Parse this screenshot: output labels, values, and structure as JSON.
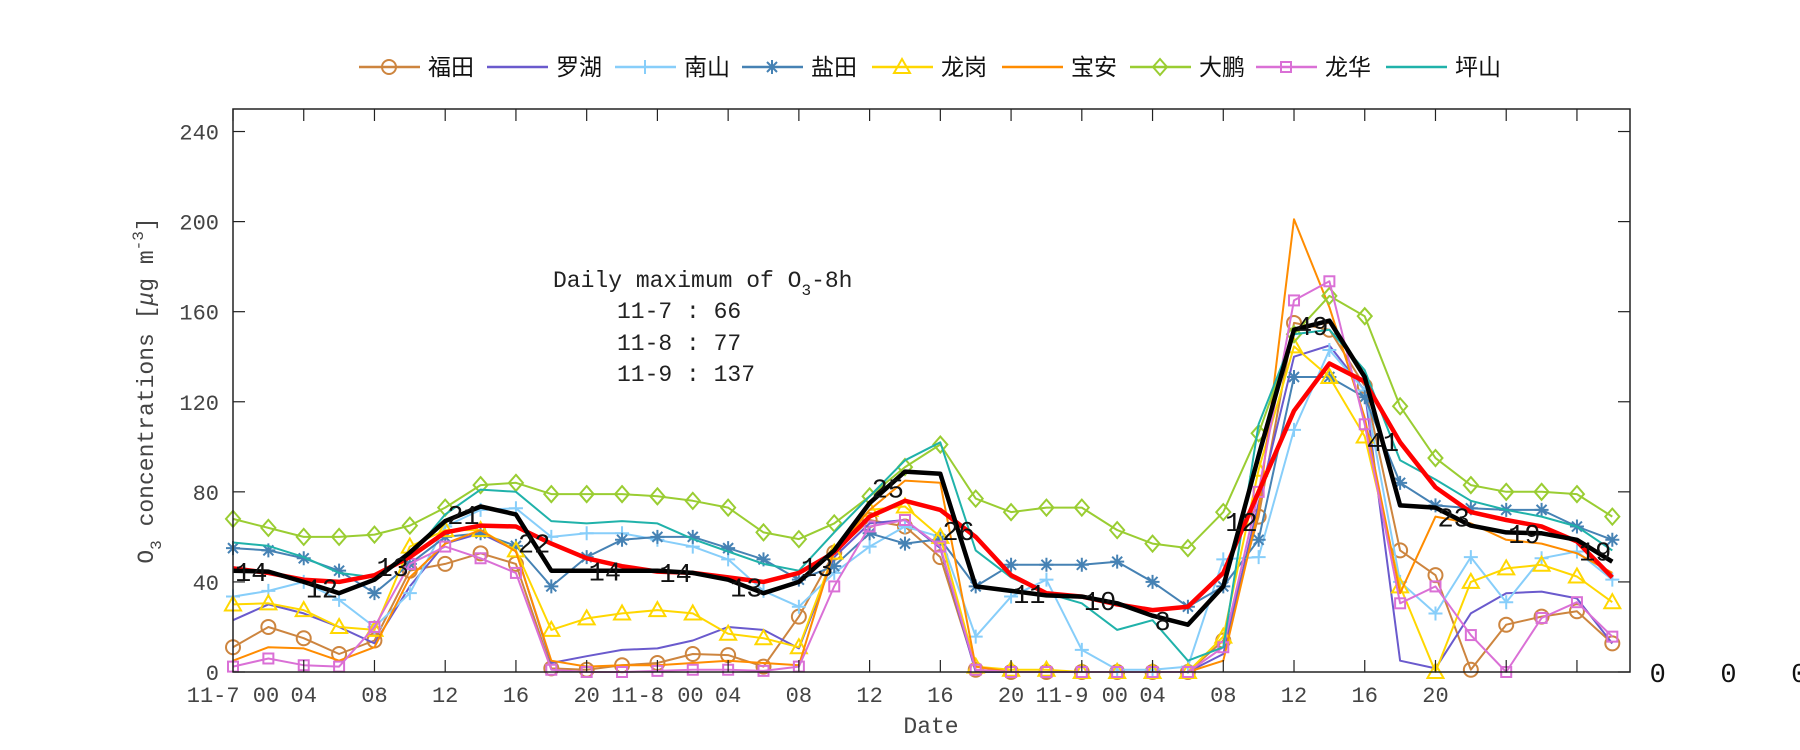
{
  "chart_data": {
    "type": "line",
    "xlabel": "Date",
    "ylabel_parts": [
      {
        "t": "O",
        "s": "normal"
      },
      {
        "t": "3",
        "s": "sub"
      },
      {
        "t": " concentrations [",
        "s": "normal"
      },
      {
        "t": "μ",
        "s": "italic"
      },
      {
        "t": "g m",
        "s": "normal"
      },
      {
        "t": "-3",
        "s": "sup"
      },
      {
        "t": "]",
        "s": "normal"
      }
    ],
    "x_unit": "hours from 11-7 00",
    "xlim": [
      0,
      79
    ],
    "ylim": [
      0,
      250
    ],
    "yticks": [
      0,
      40,
      80,
      120,
      160,
      200,
      240
    ],
    "xticks": [
      0,
      4,
      8,
      12,
      16,
      20,
      24,
      28,
      32,
      36,
      40,
      44,
      48,
      52,
      56,
      60,
      64,
      68,
      72,
      76
    ],
    "xtick_labels": [
      "11-7 00",
      "04",
      "08",
      "12",
      "16",
      "20",
      "11-8 00",
      "04",
      "08",
      "12",
      "16",
      "20",
      "11-9 00",
      "04",
      "08",
      "12",
      "16",
      "20",
      "",
      ""
    ],
    "grid": false,
    "legend_position": "top (outside, horizontal)",
    "x": [
      0,
      2,
      4,
      6,
      8,
      10,
      12,
      14,
      16,
      18,
      20,
      22,
      24,
      26,
      28,
      30,
      32,
      34,
      36,
      38,
      40,
      42,
      44,
      46,
      48,
      50,
      52,
      54,
      56,
      58,
      60,
      62,
      64,
      66,
      68,
      70,
      72,
      74,
      76,
      78
    ],
    "series": [
      {
        "name": "福田",
        "color": "#CD853F",
        "marker": "circle",
        "values": [
          11,
          20,
          15,
          8,
          14,
          45,
          48,
          52.7,
          48,
          1.6,
          1,
          3,
          4,
          8,
          7.5,
          2.4,
          24.6,
          53,
          67.5,
          64.6,
          51,
          1,
          0,
          0,
          0,
          0,
          0,
          0,
          14,
          69,
          155,
          152,
          127,
          54,
          43,
          1,
          21,
          24.6,
          27,
          12.7
        ]
      },
      {
        "name": "罗湖",
        "color": "#6A5ACD",
        "marker": "none",
        "values": [
          23,
          30,
          26,
          20,
          12.7,
          38,
          57,
          61.6,
          54,
          4,
          7,
          9.8,
          10.5,
          14,
          20,
          18.7,
          10.5,
          51,
          66,
          67.5,
          55,
          0,
          0,
          0,
          0,
          0,
          0,
          0,
          8,
          75,
          140,
          145,
          125,
          5,
          1.6,
          26,
          35,
          35.7,
          32.7,
          12.7
        ]
      },
      {
        "name": "南山",
        "color": "#87CEFA",
        "marker": "plus",
        "values": [
          33.5,
          36,
          40,
          32,
          20,
          35,
          64.6,
          72,
          72.7,
          60,
          61.6,
          61.6,
          58.7,
          55.7,
          50,
          36,
          29,
          44,
          55.7,
          64.6,
          60,
          15.7,
          33.5,
          41,
          9.8,
          1,
          1,
          2.4,
          50,
          51,
          107.5,
          143,
          125,
          40,
          26,
          51,
          31,
          50.5,
          53.5,
          41
        ]
      },
      {
        "name": "盐田",
        "color": "#4682B4",
        "marker": "asterisk",
        "values": [
          55,
          54,
          50.5,
          45,
          35,
          48,
          60,
          61.6,
          56,
          38,
          51,
          58.7,
          60,
          60,
          55,
          50,
          41,
          47,
          61.6,
          57,
          59,
          38,
          47.6,
          47.6,
          47.6,
          49,
          40,
          29,
          38,
          58.7,
          131,
          131,
          122,
          84,
          74,
          72.7,
          72,
          72,
          64.6,
          58.7
        ]
      },
      {
        "name": "龙岗",
        "color": "#FFD700",
        "marker": "triangle",
        "values": [
          30,
          30.5,
          27.5,
          20,
          18.7,
          55.7,
          63,
          63,
          54,
          18.7,
          23.8,
          26,
          27.5,
          26,
          17,
          15,
          11,
          53,
          72,
          73.5,
          60,
          2.4,
          1,
          1,
          0,
          0,
          0,
          0,
          15.7,
          89.8,
          144.6,
          131,
          104.6,
          38,
          0,
          40,
          46,
          47.6,
          42.4,
          31
        ]
      },
      {
        "name": "宝安",
        "color": "#FF8C00",
        "marker": "none",
        "values": [
          5,
          11,
          10.5,
          5,
          11,
          42,
          57,
          63,
          53.5,
          5,
          2.4,
          3,
          3,
          4,
          5,
          4,
          3,
          54,
          72,
          85,
          84,
          2.4,
          0,
          0,
          0,
          0,
          0,
          0,
          5,
          72,
          201,
          162,
          113,
          35,
          69,
          66,
          58.7,
          57,
          52.7,
          44
        ]
      },
      {
        "name": "大鹏",
        "color": "#9ACD32",
        "marker": "diamond",
        "values": [
          68,
          64,
          60,
          60,
          61,
          65,
          73,
          83,
          84,
          79,
          79,
          79,
          78,
          76,
          73,
          62,
          59,
          66,
          78,
          91,
          101,
          77,
          71,
          73,
          73,
          63,
          57,
          55,
          71,
          106,
          150,
          167,
          158,
          118,
          95,
          83,
          80,
          80,
          79,
          69
        ]
      },
      {
        "name": "龙华",
        "color": "#DA70D6",
        "marker": "square",
        "values": [
          2.4,
          6,
          3,
          2.4,
          20,
          48,
          55.7,
          50.5,
          44,
          1,
          0,
          0,
          0.5,
          1,
          1,
          0.5,
          2.4,
          38,
          64.6,
          67.5,
          55.7,
          1,
          0,
          0,
          0,
          0,
          0,
          0,
          11,
          80,
          165,
          173.5,
          110,
          30.5,
          38,
          16.4,
          0,
          24,
          31,
          15.7
        ]
      },
      {
        "name": "坪山",
        "color": "#20B2AA",
        "marker": "none",
        "values": [
          57.5,
          56,
          51,
          44,
          42,
          51,
          70,
          81,
          80,
          67,
          66,
          67,
          66,
          59,
          53.5,
          48,
          45,
          62,
          78,
          94,
          102,
          54,
          42,
          35,
          30.5,
          18.7,
          23,
          5,
          11,
          110,
          150,
          152,
          134,
          94,
          85.5,
          76,
          72,
          69,
          64.6,
          54
        ]
      }
    ],
    "extra_lines": [
      {
        "color": "#FF0000",
        "values": [
          46,
          44,
          41,
          40,
          43,
          51,
          62,
          65,
          64.6,
          57,
          50.5,
          47,
          44.6,
          44,
          42,
          40,
          44,
          53,
          69,
          76,
          72,
          60,
          43,
          35,
          33.5,
          30,
          27.5,
          29,
          44,
          80,
          116,
          137,
          129,
          102,
          82,
          71,
          67.5,
          64.6,
          58,
          42
        ]
      },
      {
        "color": "#000000",
        "values": [
          45,
          44.6,
          40,
          35,
          41,
          53,
          67,
          73.5,
          70,
          45,
          45,
          45,
          45,
          44,
          41,
          35,
          40,
          54,
          75,
          89,
          88,
          38,
          36,
          34,
          33.5,
          30.5,
          25,
          21,
          38,
          96,
          152,
          156,
          131,
          74,
          73,
          65,
          62,
          61.6,
          58.7,
          49
        ]
      }
    ],
    "point_labels": {
      "x": [
        0,
        4,
        8,
        12,
        16,
        20,
        24,
        28,
        32,
        36,
        40,
        44,
        48,
        52,
        56,
        60,
        64,
        68,
        72,
        76,
        80,
        84,
        88
      ],
      "text": [
        "14",
        "12",
        "13",
        "21",
        "22",
        "14",
        "14",
        "13",
        "13",
        "25",
        "26",
        "11",
        "10",
        "8",
        "12",
        "49",
        "41",
        "23",
        "19",
        "19",
        "0",
        "0",
        "0"
      ]
    },
    "annotation": {
      "title_prefix": "Daily maximum of O",
      "title_sub": "3",
      "title_suffix": "-8h",
      "lines": [
        "11-7 : 66",
        "11-8 : 77",
        "11-9 : 137"
      ]
    }
  }
}
